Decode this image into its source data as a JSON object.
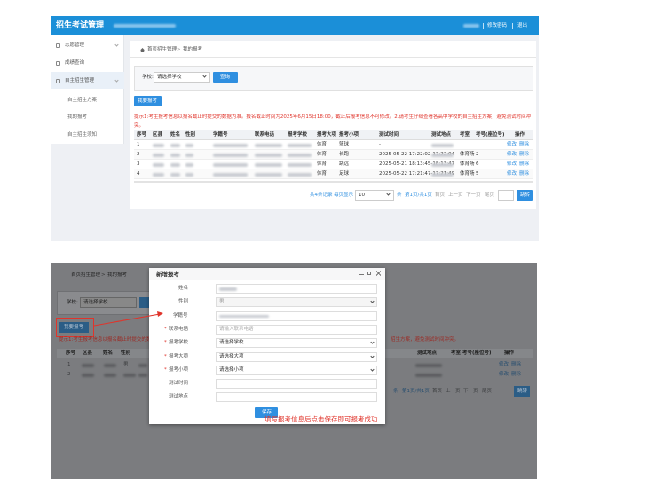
{
  "top": {
    "header": {
      "title": "招生考试管理",
      "links": [
        "修改密码",
        "退出"
      ]
    },
    "sidebar": {
      "items": [
        "志愿管理",
        "成绩查询",
        "自主招生管理"
      ],
      "subitems": [
        "自主招生方案",
        "我的报考",
        "自主招生须知"
      ]
    },
    "breadcrumb": {
      "items": [
        "首页招生管理",
        "我的报考"
      ],
      "separator": ">"
    },
    "search": {
      "label": "学校:",
      "placeholder": "请选择学校",
      "button": "查询"
    },
    "add_button": "我要报考",
    "tip": "提示1:考生报考信息以报名截止时提交的数据为准。报名截止时间为2025年6月15日18:00，截止后报考信息不可修改。2.请考生仔细查看各高中学校的自主招生方案，避免测试时间冲突。",
    "table": {
      "columns": [
        "序号",
        "区县",
        "姓名",
        "性别",
        "学籍号",
        "联系电话",
        "报考学校",
        "报考大项",
        "报考小项",
        "测试时间",
        "测试地点",
        "考室",
        "考号(座位号)",
        "操作"
      ],
      "rows": [
        [
          "1",
          null,
          null,
          null,
          null,
          null,
          null,
          "体育",
          "篮球",
          "-",
          null,
          null,
          null
        ],
        [
          "2",
          null,
          null,
          null,
          null,
          null,
          null,
          "体育",
          "长跑",
          "2025-05-22 17:22:02-17:22:04",
          null,
          "体育场",
          "2"
        ],
        [
          "3",
          null,
          null,
          null,
          null,
          null,
          null,
          "体育",
          "跳远",
          "2025-05-21 18:13:45-18:13:47",
          null,
          "体育场",
          "6"
        ],
        [
          "4",
          null,
          null,
          null,
          null,
          null,
          null,
          "体育",
          "足球",
          "2025-05-22 17:21:47-17:21:49",
          null,
          "体育场",
          "5"
        ]
      ],
      "actions": [
        "修改",
        "删除"
      ]
    },
    "pagination": {
      "total": "共4条记录",
      "per_page_label": "每页显示",
      "per_page": 10,
      "unit": "条",
      "page": "第1页/共1页",
      "nav": [
        "首页",
        "上一页",
        "下一页",
        "尾页"
      ],
      "jump": "跳转"
    }
  },
  "bottom": {
    "breadcrumb": {
      "items": [
        "首页招生管理",
        "我的报考"
      ],
      "separator": ">"
    },
    "search": {
      "label": "学校:",
      "placeholder": "请选择学校"
    },
    "add_button": "我要报考",
    "tip_left": "提示1:考生报考信息以报名截止时提交的数据",
    "tip_right": "招生方案，避免测试时间冲突。",
    "table": {
      "columns_left": [
        "序号",
        "区县",
        "姓名",
        "性别"
      ],
      "columns_right": [
        "测试地点",
        "考室",
        "考号(座位号)",
        "操作"
      ],
      "rows": [
        [
          "1",
          null,
          null,
          "男"
        ],
        [
          "2",
          null,
          null,
          null
        ]
      ],
      "actions": [
        "修改",
        "删除"
      ]
    },
    "pagination": {
      "unit": "条",
      "page": "第1页/共1页",
      "nav": [
        "首页",
        "上一页",
        "下一页",
        "尾页"
      ],
      "jump": "跳转"
    },
    "modal": {
      "title": "新增报考",
      "required_mark": "*",
      "fields": [
        {
          "label": "姓名",
          "required": false
        },
        {
          "label": "性别",
          "value": "男",
          "required": false
        },
        {
          "label": "学籍号",
          "required": false
        },
        {
          "label": "联系电话",
          "placeholder": "请输入联系电话",
          "required": true
        },
        {
          "label": "报考学校",
          "placeholder": "请选择学校",
          "required": true
        },
        {
          "label": "报考大项",
          "placeholder": "请选择大项",
          "required": true
        },
        {
          "label": "报考小项",
          "placeholder": "请选择小项",
          "required": true
        },
        {
          "label": "测试时间",
          "required": false
        },
        {
          "label": "测试地点",
          "required": false
        }
      ],
      "save_button": "保存"
    },
    "annotation": "填写报考信息后点击保存即可报考成功"
  }
}
